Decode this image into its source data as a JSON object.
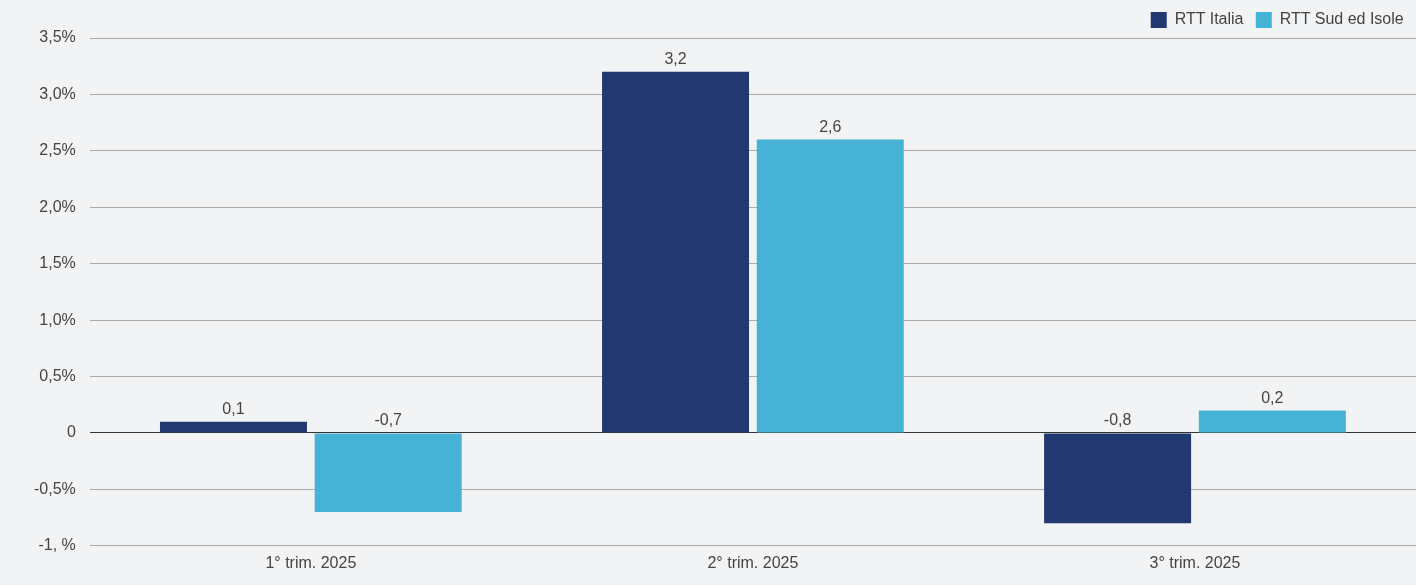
{
  "chart_data": {
    "type": "bar",
    "categories": [
      "1° trim. 2025",
      "2° trim. 2025",
      "3° trim. 2025"
    ],
    "series": [
      {
        "name": "RTT Italia",
        "color": "#223870",
        "values": [
          0.1,
          3.2,
          -0.8
        ],
        "value_labels": [
          "0,1",
          "3,2",
          "-0,8"
        ]
      },
      {
        "name": "RTT Sud ed Isole",
        "color": "#46b3d6",
        "values": [
          -0.7,
          2.6,
          0.2
        ],
        "value_labels": [
          "-0,7",
          "2,6",
          "0,2"
        ]
      }
    ],
    "ylim": [
      -1,
      3.5
    ],
    "yticks": [
      {
        "value": -1,
        "label": "-1, %"
      },
      {
        "value": -0.5,
        "label": "-0,5%"
      },
      {
        "value": 0,
        "label": "0"
      },
      {
        "value": 0.5,
        "label": "0,5%"
      },
      {
        "value": 1,
        "label": "1,0%"
      },
      {
        "value": 1.5,
        "label": "1,5%"
      },
      {
        "value": 2,
        "label": "2,0%"
      },
      {
        "value": 2.5,
        "label": "2,5%"
      },
      {
        "value": 3,
        "label": "3,0%"
      },
      {
        "value": 3.5,
        "label": "3,5%"
      }
    ],
    "grid": "y",
    "legend": "top right"
  }
}
